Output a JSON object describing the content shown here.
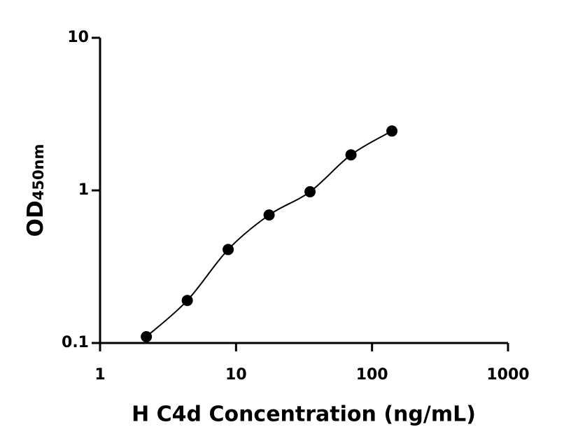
{
  "chart_data": {
    "type": "scatter",
    "xlabel": "H C4d Concentration (ng/mL)",
    "ylabel": {
      "main": "OD",
      "sub": "450nm"
    },
    "x": [
      2.19,
      4.38,
      8.75,
      17.5,
      35,
      70,
      140
    ],
    "series": [
      {
        "color": "#000000",
        "values": [
          0.11,
          0.19,
          0.41,
          0.69,
          0.98,
          1.71,
          2.45
        ]
      }
    ],
    "fit_line": true,
    "xscale": "log",
    "yscale": "log",
    "xlim": [
      1,
      1000
    ],
    "xticks": [
      1,
      10,
      100,
      1000
    ],
    "ylim": [
      0.1,
      10
    ],
    "yticks": [
      0.1,
      1,
      10
    ]
  }
}
